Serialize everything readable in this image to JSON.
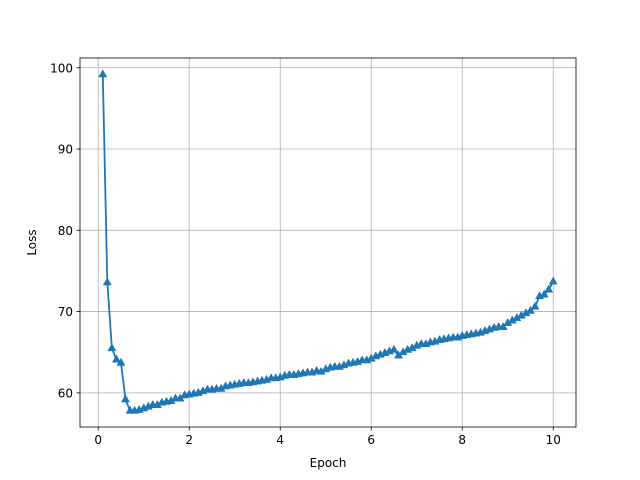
{
  "chart_data": {
    "type": "line",
    "title": "",
    "xlabel": "Epoch",
    "ylabel": "Loss",
    "xlim": [
      -0.4,
      10.5
    ],
    "ylim": [
      55.8,
      101.2
    ],
    "xticks": [
      0,
      2,
      4,
      6,
      8,
      10
    ],
    "xtick_labels": [
      "0",
      "2",
      "4",
      "6",
      "8",
      "10"
    ],
    "yticks": [
      60,
      70,
      80,
      90,
      100
    ],
    "ytick_labels": [
      "60",
      "70",
      "80",
      "90",
      "100"
    ],
    "grid": true,
    "marker": "triangle-up",
    "line_color": "#1f77b4",
    "grid_color": "#b0b0b0",
    "series": [
      {
        "x": [
          0.1,
          0.2,
          0.3,
          0.4,
          0.5,
          0.6,
          0.7,
          0.8,
          0.9,
          1.0,
          1.1,
          1.2,
          1.3,
          1.4,
          1.5,
          1.6,
          1.7,
          1.8,
          1.9,
          2.0,
          2.1,
          2.2,
          2.3,
          2.4,
          2.5,
          2.6,
          2.7,
          2.8,
          2.9,
          3.0,
          3.1,
          3.2,
          3.3,
          3.4,
          3.5,
          3.6,
          3.7,
          3.8,
          3.9,
          4.0,
          4.1,
          4.2,
          4.3,
          4.4,
          4.5,
          4.6,
          4.7,
          4.8,
          4.9,
          5.0,
          5.1,
          5.2,
          5.3,
          5.4,
          5.5,
          5.6,
          5.7,
          5.8,
          5.9,
          6.0,
          6.1,
          6.2,
          6.3,
          6.4,
          6.5,
          6.6,
          6.7,
          6.8,
          6.9,
          7.0,
          7.1,
          7.2,
          7.3,
          7.4,
          7.5,
          7.6,
          7.7,
          7.8,
          7.9,
          8.0,
          8.1,
          8.2,
          8.3,
          8.4,
          8.5,
          8.6,
          8.7,
          8.8,
          8.9,
          9.0,
          9.1,
          9.2,
          9.3,
          9.4,
          9.5,
          9.6,
          9.7,
          9.8,
          9.9,
          10.0
        ],
        "y": [
          99.2,
          73.6,
          65.5,
          64.1,
          63.7,
          59.2,
          57.8,
          57.8,
          57.9,
          58.1,
          58.3,
          58.5,
          58.5,
          58.8,
          58.9,
          59.0,
          59.3,
          59.3,
          59.7,
          59.8,
          59.9,
          60.0,
          60.2,
          60.4,
          60.4,
          60.5,
          60.5,
          60.8,
          60.9,
          61.0,
          61.1,
          61.2,
          61.2,
          61.3,
          61.4,
          61.5,
          61.6,
          61.8,
          61.8,
          61.9,
          62.1,
          62.2,
          62.2,
          62.3,
          62.4,
          62.5,
          62.5,
          62.7,
          62.6,
          62.9,
          63.1,
          63.2,
          63.2,
          63.4,
          63.6,
          63.7,
          63.8,
          64.0,
          64.0,
          64.2,
          64.5,
          64.7,
          64.9,
          65.1,
          65.3,
          64.6,
          65.0,
          65.3,
          65.5,
          65.8,
          66.0,
          66.0,
          66.2,
          66.3,
          66.5,
          66.6,
          66.7,
          66.8,
          66.8,
          67.0,
          67.1,
          67.2,
          67.3,
          67.4,
          67.6,
          67.8,
          68.0,
          68.1,
          68.1,
          68.6,
          68.9,
          69.2,
          69.5,
          69.8,
          70.1,
          70.6,
          71.9,
          72.1,
          72.7,
          73.7
        ]
      }
    ]
  }
}
